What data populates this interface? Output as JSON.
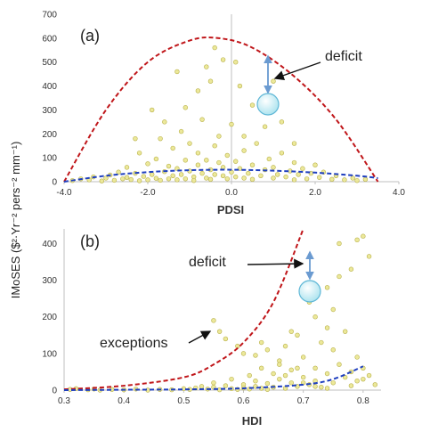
{
  "ylabel": "IMoSES ($²·Yr⁻² pers⁻² mm⁻¹)",
  "colors": {
    "points_fill": "#ece89a",
    "points_stroke": "#b8b14a",
    "upper_curve": "#c0161a",
    "lower_curve": "#1f3fbf",
    "arrow_blue": "#6b9bd1",
    "bubble_fill": "#cbf0f5",
    "bubble_stroke": "#5fb7d6",
    "axis": "#bfbfbf"
  },
  "chart_data": [
    {
      "type": "scatter",
      "panel_label": "(a)",
      "xlabel": "PDSI",
      "ylabel": "",
      "xlim": [
        -4.0,
        4.0
      ],
      "ylim": [
        0,
        700
      ],
      "x_ticks": [
        "-4.0",
        "-2.0",
        "0.0",
        "2.0",
        "4.0"
      ],
      "y_ticks": [
        "0",
        "100",
        "200",
        "300",
        "400",
        "500",
        "600",
        "700"
      ],
      "annotation": "deficit",
      "curves": [
        {
          "style": "dashed",
          "color": "red",
          "x": [
            -4.0,
            -3.0,
            -2.0,
            -1.0,
            -0.3,
            0.5,
            1.5,
            2.5,
            3.5
          ],
          "y": [
            0,
            300,
            500,
            590,
            600,
            560,
            440,
            260,
            0
          ]
        },
        {
          "style": "dashed",
          "color": "blue",
          "x": [
            -4.0,
            -3.0,
            -2.0,
            -1.0,
            0.0,
            1.0,
            2.0,
            3.0,
            3.5
          ],
          "y": [
            0,
            25,
            40,
            48,
            50,
            46,
            38,
            25,
            15
          ]
        }
      ],
      "points": [
        [
          -3.8,
          5
        ],
        [
          -3.6,
          12
        ],
        [
          -3.4,
          8
        ],
        [
          -3.3,
          20
        ],
        [
          -3.1,
          3
        ],
        [
          -3.0,
          15
        ],
        [
          -2.9,
          28
        ],
        [
          -2.8,
          6
        ],
        [
          -2.7,
          40
        ],
        [
          -2.6,
          12
        ],
        [
          -2.5,
          18
        ],
        [
          -2.5,
          60
        ],
        [
          -2.4,
          9
        ],
        [
          -2.3,
          35
        ],
        [
          -2.2,
          4
        ],
        [
          -2.2,
          120
        ],
        [
          -2.1,
          22
        ],
        [
          -2.0,
          8
        ],
        [
          -2.0,
          75
        ],
        [
          -1.9,
          30
        ],
        [
          -1.8,
          14
        ],
        [
          -1.8,
          95
        ],
        [
          -1.7,
          6
        ],
        [
          -1.7,
          180
        ],
        [
          -1.6,
          42
        ],
        [
          -1.5,
          12
        ],
        [
          -1.5,
          65
        ],
        [
          -1.4,
          25
        ],
        [
          -1.4,
          140
        ],
        [
          -1.3,
          8
        ],
        [
          -1.3,
          55
        ],
        [
          -1.2,
          30
        ],
        [
          -1.2,
          210
        ],
        [
          -1.1,
          12
        ],
        [
          -1.1,
          90
        ],
        [
          -1.0,
          45
        ],
        [
          -1.0,
          160
        ],
        [
          -0.9,
          20
        ],
        [
          -0.9,
          5
        ],
        [
          -0.8,
          70
        ],
        [
          -0.8,
          120
        ],
        [
          -0.7,
          35
        ],
        [
          -0.7,
          260
        ],
        [
          -0.6,
          15
        ],
        [
          -0.6,
          90
        ],
        [
          -0.5,
          50
        ],
        [
          -0.5,
          420
        ],
        [
          -0.5,
          10
        ],
        [
          -0.4,
          150
        ],
        [
          -0.4,
          30
        ],
        [
          -0.3,
          80
        ],
        [
          -0.3,
          190
        ],
        [
          -0.2,
          25
        ],
        [
          -0.2,
          60
        ],
        [
          -0.1,
          110
        ],
        [
          -0.1,
          12
        ],
        [
          0.0,
          40
        ],
        [
          0.0,
          240
        ],
        [
          0.1,
          20
        ],
        [
          0.1,
          85
        ],
        [
          0.2,
          55
        ],
        [
          0.2,
          400
        ],
        [
          0.3,
          15
        ],
        [
          0.3,
          130
        ],
        [
          0.4,
          35
        ],
        [
          0.5,
          70
        ],
        [
          0.5,
          10
        ],
        [
          0.6,
          160
        ],
        [
          0.7,
          25
        ],
        [
          0.8,
          50
        ],
        [
          0.9,
          95
        ],
        [
          1.0,
          15
        ],
        [
          1.0,
          60
        ],
        [
          1.1,
          30
        ],
        [
          1.2,
          120
        ],
        [
          1.3,
          20
        ],
        [
          1.4,
          45
        ],
        [
          1.5,
          8
        ],
        [
          1.5,
          80
        ],
        [
          1.6,
          30
        ],
        [
          1.7,
          55
        ],
        [
          1.8,
          12
        ],
        [
          1.9,
          35
        ],
        [
          2.0,
          70
        ],
        [
          2.1,
          18
        ],
        [
          2.2,
          40
        ],
        [
          2.4,
          10
        ],
        [
          2.5,
          25
        ],
        [
          2.7,
          8
        ],
        [
          2.9,
          15
        ],
        [
          3.0,
          5
        ],
        [
          3.2,
          10
        ],
        [
          -1.9,
          300
        ],
        [
          -1.3,
          460
        ],
        [
          -0.8,
          380
        ],
        [
          0.1,
          500
        ],
        [
          -0.2,
          510
        ],
        [
          1.0,
          420
        ],
        [
          0.5,
          320
        ],
        [
          -0.4,
          560
        ],
        [
          -1.6,
          250
        ],
        [
          1.2,
          250
        ],
        [
          0.8,
          230
        ],
        [
          -2.3,
          180
        ],
        [
          -0.6,
          480
        ],
        [
          1.5,
          160
        ],
        [
          0.3,
          190
        ],
        [
          -1.1,
          310
        ]
      ]
    },
    {
      "type": "scatter",
      "panel_label": "(b)",
      "xlabel": "HDI",
      "ylabel": "",
      "xlim": [
        0.3,
        0.83
      ],
      "ylim": [
        0,
        440
      ],
      "x_ticks": [
        "0.3",
        "0.4",
        "0.5",
        "0.6",
        "0.7",
        "0.8"
      ],
      "y_ticks": [
        "0",
        "100",
        "200",
        "300",
        "400"
      ],
      "annotations": [
        "deficit",
        "exceptions"
      ],
      "curves": [
        {
          "style": "dashed",
          "color": "red",
          "x": [
            0.3,
            0.4,
            0.5,
            0.55,
            0.6,
            0.65,
            0.7
          ],
          "y": [
            2,
            12,
            35,
            70,
            130,
            240,
            440
          ]
        },
        {
          "style": "dashed",
          "color": "blue",
          "x": [
            0.3,
            0.4,
            0.5,
            0.6,
            0.7,
            0.75,
            0.8
          ],
          "y": [
            0,
            1,
            2,
            5,
            15,
            30,
            65
          ]
        }
      ],
      "points": [
        [
          0.31,
          2
        ],
        [
          0.32,
          4
        ],
        [
          0.34,
          1
        ],
        [
          0.35,
          3
        ],
        [
          0.36,
          0
        ],
        [
          0.38,
          2
        ],
        [
          0.4,
          1
        ],
        [
          0.42,
          3
        ],
        [
          0.44,
          0
        ],
        [
          0.46,
          2
        ],
        [
          0.48,
          1
        ],
        [
          0.5,
          4
        ],
        [
          0.51,
          2
        ],
        [
          0.52,
          6
        ],
        [
          0.53,
          10
        ],
        [
          0.54,
          3
        ],
        [
          0.55,
          20
        ],
        [
          0.55,
          8
        ],
        [
          0.56,
          1
        ],
        [
          0.57,
          12
        ],
        [
          0.58,
          4
        ],
        [
          0.58,
          30
        ],
        [
          0.59,
          2
        ],
        [
          0.6,
          15
        ],
        [
          0.6,
          6
        ],
        [
          0.61,
          40
        ],
        [
          0.61,
          3
        ],
        [
          0.62,
          10
        ],
        [
          0.62,
          25
        ],
        [
          0.63,
          5
        ],
        [
          0.63,
          60
        ],
        [
          0.64,
          2
        ],
        [
          0.64,
          18
        ],
        [
          0.65,
          45
        ],
        [
          0.65,
          8
        ],
        [
          0.66,
          30
        ],
        [
          0.66,
          80
        ],
        [
          0.67,
          5
        ],
        [
          0.67,
          120
        ],
        [
          0.68,
          20
        ],
        [
          0.68,
          55
        ],
        [
          0.69,
          10
        ],
        [
          0.69,
          150
        ],
        [
          0.7,
          35
        ],
        [
          0.7,
          90
        ],
        [
          0.71,
          15
        ],
        [
          0.71,
          240
        ],
        [
          0.72,
          60
        ],
        [
          0.72,
          25
        ],
        [
          0.73,
          130
        ],
        [
          0.73,
          8
        ],
        [
          0.74,
          45
        ],
        [
          0.74,
          170
        ],
        [
          0.75,
          20
        ],
        [
          0.75,
          110
        ],
        [
          0.76,
          70
        ],
        [
          0.76,
          400
        ],
        [
          0.77,
          35
        ],
        [
          0.77,
          160
        ],
        [
          0.78,
          50
        ],
        [
          0.78,
          330
        ],
        [
          0.79,
          25
        ],
        [
          0.79,
          90
        ],
        [
          0.8,
          60
        ],
        [
          0.8,
          420
        ],
        [
          0.81,
          40
        ],
        [
          0.81,
          365
        ],
        [
          0.82,
          15
        ],
        [
          0.76,
          310
        ],
        [
          0.79,
          410
        ],
        [
          0.55,
          190
        ],
        [
          0.56,
          160
        ],
        [
          0.57,
          140
        ],
        [
          0.59,
          120
        ],
        [
          0.6,
          100
        ],
        [
          0.62,
          95
        ],
        [
          0.64,
          110
        ],
        [
          0.63,
          130
        ],
        [
          0.66,
          70
        ],
        [
          0.68,
          160
        ],
        [
          0.69,
          60
        ],
        [
          0.72,
          200
        ],
        [
          0.74,
          280
        ],
        [
          0.75,
          220
        ],
        [
          0.7,
          20
        ],
        [
          0.72,
          10
        ],
        [
          0.74,
          5
        ],
        [
          0.78,
          12
        ],
        [
          0.8,
          30
        ],
        [
          0.67,
          40
        ]
      ]
    }
  ]
}
